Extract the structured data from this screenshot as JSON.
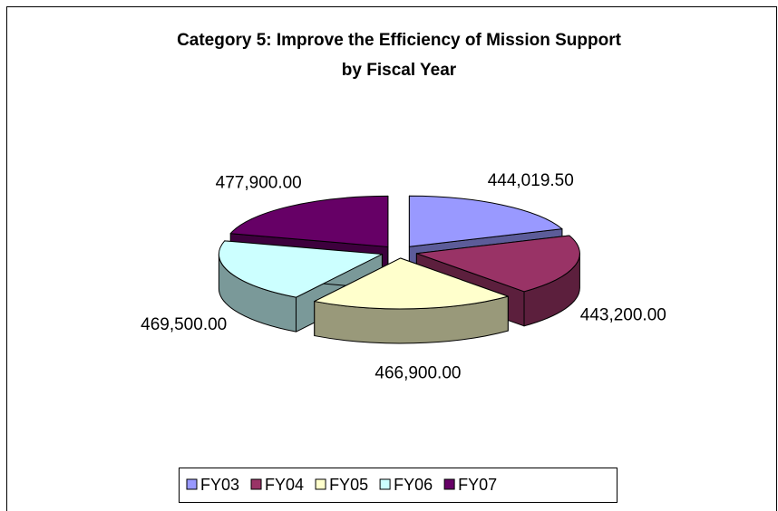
{
  "chart_data": {
    "type": "pie3d",
    "title": [
      "Category 5: Improve the Efficiency of Mission Support",
      "by Fiscal Year"
    ],
    "categories": [
      "FY03",
      "FY04",
      "FY05",
      "FY06",
      "FY07"
    ],
    "values": [
      444019.5,
      443200,
      466900,
      469500,
      477900
    ],
    "value_labels": [
      "444,019.50",
      "443,200.00",
      "466,900.00",
      "469,500.00",
      "477,900.00"
    ],
    "colors": [
      "#9999ff",
      "#993366",
      "#ffffcc",
      "#ccffff",
      "#660066"
    ],
    "legend": "bottom"
  }
}
